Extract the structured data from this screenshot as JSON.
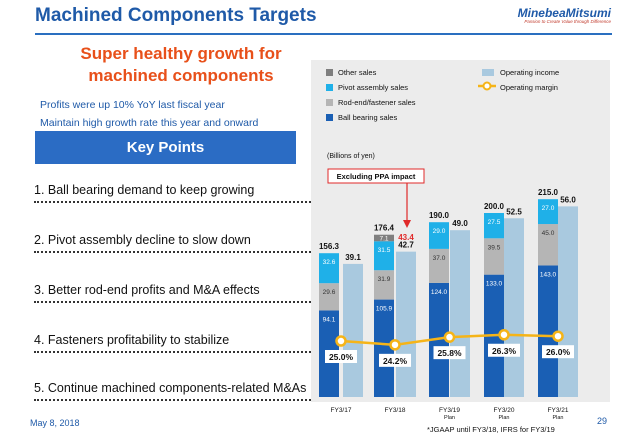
{
  "page": {
    "title": "Machined Components Targets",
    "logo": "MinebeaMitsumi",
    "logo_tagline": "Passion to Create Value through Difference",
    "headline": [
      "Super healthy growth for",
      "machined components"
    ],
    "subpoints": [
      "Profits were up 10% YoY last fiscal year",
      "Maintain high growth rate this year and onward"
    ],
    "key_points_title": "Key Points",
    "key_points": [
      "1.  Ball bearing demand to keep growing",
      "2. Pivot assembly decline to slow down",
      "3. Better rod-end profits and M&A effects",
      "4. Fasteners profitability to stabilize",
      "5. Continue machined components-related M&As"
    ],
    "date": "May 8, 2018",
    "footnote": "*JGAAP until FY3/18, IFRS for FY3/19",
    "page_number": "29",
    "ppa_label": "Excluding PPA impact"
  },
  "colors": {
    "ball_bearing": "#1a5fb4",
    "rod_end": "#b5b5b5",
    "pivot": "#1fb0e8",
    "other": "#7f7f7f",
    "op_income": "#a9c9df",
    "margin_line": "#f5b418",
    "ppa_value": "#e02a2a",
    "accent": "#2b6cc4"
  },
  "chart_data": {
    "type": "bar",
    "units": "(Billions of yen)",
    "categories": [
      [
        "FY3/17"
      ],
      [
        "FY3/18"
      ],
      [
        "FY3/19",
        "Plan"
      ],
      [
        "FY3/20",
        "Plan"
      ],
      [
        "FY3/21",
        "Plan"
      ]
    ],
    "stacked_series": [
      {
        "name": "Ball bearing sales",
        "values": [
          94.1,
          105.9,
          124.0,
          133.0,
          143.0
        ],
        "labels": [
          "94.1",
          "105.9",
          "124.0",
          "133.0",
          "143.0"
        ]
      },
      {
        "name": "Rod-end/fastener sales",
        "values": [
          29.6,
          31.9,
          37.0,
          39.5,
          45.0
        ],
        "labels": [
          "29.6",
          "31.9",
          "37.0",
          "39.5",
          "45.0"
        ]
      },
      {
        "name": "Pivot assembly sales",
        "values": [
          32.6,
          31.5,
          29.0,
          27.5,
          27.0
        ],
        "labels": [
          "32.6",
          "31.5",
          "29.0",
          "27.5",
          "27.0"
        ]
      },
      {
        "name": "Other sales",
        "values": [
          0,
          7.1,
          0,
          0,
          0
        ],
        "labels": [
          "",
          "7.1",
          "",
          "",
          ""
        ]
      }
    ],
    "sales_totals": [
      156.3,
      176.4,
      190.0,
      200.0,
      215.0
    ],
    "sales_total_labels": [
      "156.3",
      "176.4",
      "190.0",
      "200.0",
      "215.0"
    ],
    "operating_income": {
      "name": "Operating income",
      "values": [
        39.1,
        42.7,
        49.0,
        52.5,
        56.0
      ],
      "labels": [
        "39.1",
        "42.7",
        "49.0",
        "52.5",
        "56.0"
      ]
    },
    "ppa_excluded_income": {
      "value": 43.4,
      "label": "43.4"
    },
    "operating_margin": {
      "name": "Operating margin",
      "values": [
        25.0,
        24.2,
        25.8,
        26.3,
        26.0
      ],
      "labels": [
        "25.0%",
        "24.2%",
        "25.8%",
        "26.3%",
        "26.0%"
      ]
    },
    "legend": [
      "Other sales",
      "Pivot assembly sales",
      "Rod-end/fastener sales",
      "Ball bearing sales",
      "Operating income",
      "Operating margin"
    ],
    "ylim": [
      0,
      240
    ],
    "grid": false,
    "legend_position": "top"
  }
}
